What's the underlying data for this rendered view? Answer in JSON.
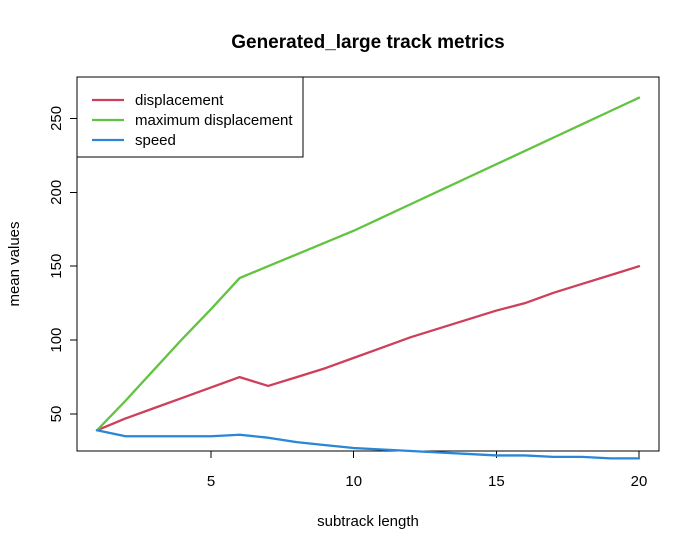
{
  "chart_data": {
    "type": "line",
    "title": "Generated_large track metrics",
    "xlabel": "subtrack length",
    "ylabel": "mean values",
    "x": [
      1,
      2,
      3,
      4,
      5,
      6,
      7,
      8,
      9,
      10,
      11,
      12,
      13,
      14,
      15,
      16,
      17,
      18,
      19,
      20
    ],
    "xlim": [
      0.3,
      20.7
    ],
    "ylim": [
      25,
      278
    ],
    "xticks": [
      5,
      10,
      15,
      20
    ],
    "yticks": [
      50,
      100,
      150,
      200,
      250
    ],
    "grid": false,
    "legend_position": "top-left",
    "series": [
      {
        "name": "displacement",
        "color": "#cd3f5a",
        "values": [
          39,
          47,
          54,
          61,
          68,
          75,
          69,
          75,
          81,
          88,
          95,
          102,
          108,
          114,
          120,
          125,
          132,
          138,
          144,
          150
        ]
      },
      {
        "name": "maximum displacement",
        "color": "#62c340",
        "values": [
          39,
          59,
          80,
          101,
          121,
          142,
          150,
          158,
          166,
          174,
          183,
          192,
          201,
          210,
          219,
          228,
          237,
          246,
          255,
          264
        ]
      },
      {
        "name": "speed",
        "color": "#2a86d6",
        "values": [
          39,
          35,
          35,
          35,
          35,
          36,
          34,
          31,
          29,
          27,
          26,
          25,
          24,
          23,
          22,
          22,
          21,
          21,
          20,
          20
        ]
      }
    ]
  }
}
